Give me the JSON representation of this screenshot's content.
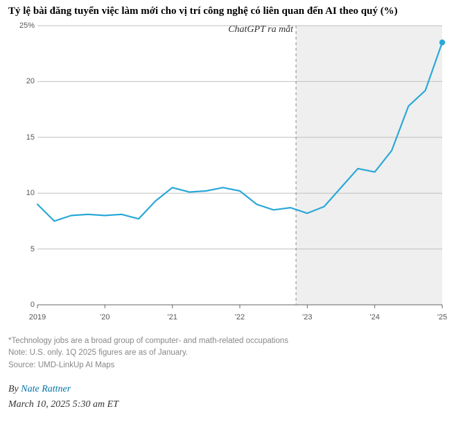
{
  "title": "Tỷ lệ bài đăng tuyển việc làm mới cho vị trí công nghệ có liên quan đến AI theo quý (%)",
  "chart": {
    "type": "line",
    "x_domain": [
      2019.0,
      2025.0
    ],
    "y_domain": [
      0,
      25
    ],
    "y_ticks": [
      0,
      5,
      10,
      15,
      20,
      25
    ],
    "y_tick_labels": [
      "0",
      "5",
      "10",
      "15",
      "20",
      "25%"
    ],
    "x_ticks": [
      2019,
      2020,
      2021,
      2022,
      2023,
      2024,
      2025
    ],
    "x_tick_labels": [
      "2019",
      "'20",
      "'21",
      "'22",
      "'23",
      "'24",
      "'25"
    ],
    "x_tick_dash_height": 5,
    "gridline_color": "#bfbfbf",
    "gridline_width": 1,
    "baseline_color": "#666666",
    "baseline_width": 1,
    "line_color": "#2ba8d8",
    "line_width": 2.2,
    "endpoint_marker": {
      "radius": 4.2,
      "color": "#2ba8d8"
    },
    "shaded_region": {
      "x_start": 2022.833,
      "x_end": 2025.0,
      "fill": "#efefef"
    },
    "divider_line": {
      "x": 2022.833,
      "color": "#888888",
      "dash": "4,4",
      "width": 1
    },
    "annotation": {
      "text": "ChatGPT ra mắt",
      "x": 2022.833
    },
    "background_color": "#ffffff",
    "series": [
      {
        "x": 2019.0,
        "y": 9.0
      },
      {
        "x": 2019.25,
        "y": 7.5
      },
      {
        "x": 2019.5,
        "y": 8.0
      },
      {
        "x": 2019.75,
        "y": 8.1
      },
      {
        "x": 2020.0,
        "y": 8.0
      },
      {
        "x": 2020.25,
        "y": 8.1
      },
      {
        "x": 2020.5,
        "y": 7.7
      },
      {
        "x": 2020.75,
        "y": 9.3
      },
      {
        "x": 2021.0,
        "y": 10.5
      },
      {
        "x": 2021.25,
        "y": 10.1
      },
      {
        "x": 2021.5,
        "y": 10.2
      },
      {
        "x": 2021.75,
        "y": 10.5
      },
      {
        "x": 2022.0,
        "y": 10.2
      },
      {
        "x": 2022.25,
        "y": 9.0
      },
      {
        "x": 2022.5,
        "y": 8.5
      },
      {
        "x": 2022.75,
        "y": 8.7
      },
      {
        "x": 2023.0,
        "y": 8.2
      },
      {
        "x": 2023.25,
        "y": 8.8
      },
      {
        "x": 2023.5,
        "y": 10.5
      },
      {
        "x": 2023.75,
        "y": 12.2
      },
      {
        "x": 2024.0,
        "y": 11.9
      },
      {
        "x": 2024.25,
        "y": 13.8
      },
      {
        "x": 2024.5,
        "y": 17.8
      },
      {
        "x": 2024.75,
        "y": 19.2
      },
      {
        "x": 2025.0,
        "y": 23.5
      }
    ]
  },
  "footnotes": {
    "note1": "*Technology jobs are a broad group of computer- and math-related occupations",
    "note2": "Note: U.S. only. 1Q 2025 figures are as of January.",
    "source": "Source: UMD-LinkUp AI Maps"
  },
  "byline_prefix": "By ",
  "byline_author": "Nate Rattner",
  "dateline": "March 10, 2025 5:30 am ET"
}
